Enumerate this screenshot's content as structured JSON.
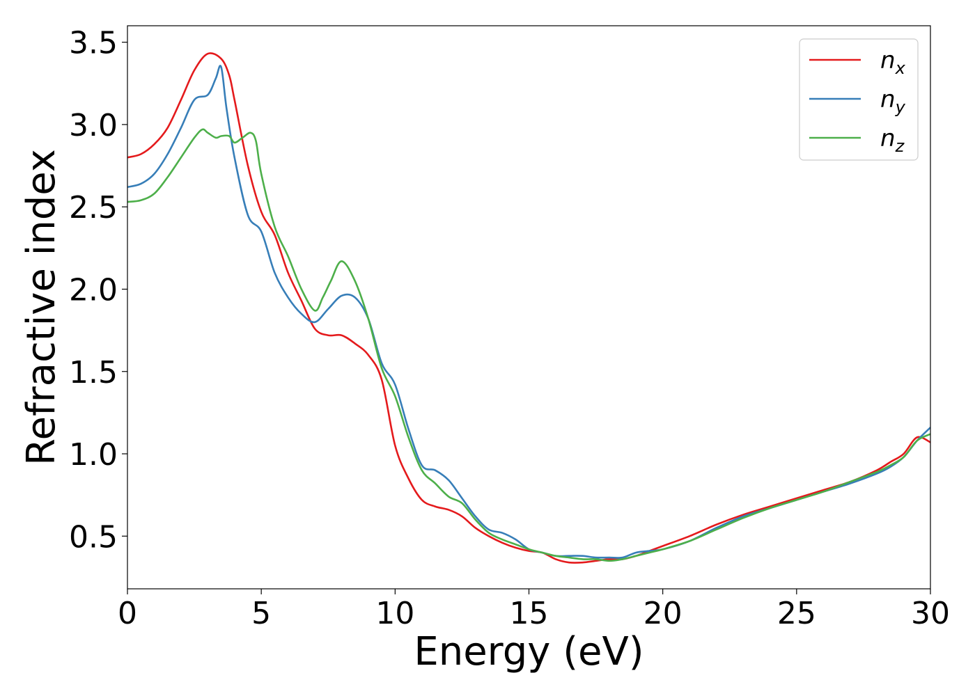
{
  "chart_data": {
    "type": "line",
    "xlabel": "Energy (eV)",
    "ylabel": "Refractive index",
    "xlim": [
      0,
      30
    ],
    "ylim": [
      0.18,
      3.6
    ],
    "xticks": [
      0,
      5,
      10,
      15,
      20,
      25,
      30
    ],
    "xtick_labels": [
      "0",
      "5",
      "10",
      "15",
      "20",
      "25",
      "30"
    ],
    "yticks": [
      0.5,
      1.0,
      1.5,
      2.0,
      2.5,
      3.0,
      3.5
    ],
    "ytick_labels": [
      "0.5",
      "1.0",
      "1.5",
      "2.0",
      "2.5",
      "3.0",
      "3.5"
    ],
    "grid": false,
    "legend_position": "top-right",
    "series": [
      {
        "name": "n",
        "subscript": "x",
        "color": "#e41a1c",
        "x": [
          0,
          0.5,
          1.0,
          1.5,
          2.0,
          2.5,
          3.0,
          3.5,
          3.8,
          4.0,
          4.5,
          5.0,
          5.5,
          6.0,
          6.5,
          7.0,
          7.5,
          8.0,
          8.5,
          9.0,
          9.5,
          10.0,
          10.5,
          11.0,
          11.5,
          12.0,
          12.5,
          13.0,
          13.5,
          14.0,
          14.5,
          15.0,
          15.5,
          16.0,
          16.5,
          17.0,
          17.5,
          18.0,
          18.5,
          19.0,
          19.5,
          20.0,
          21.0,
          22.0,
          23.0,
          24.0,
          25.0,
          26.0,
          27.0,
          28.0,
          28.5,
          29.0,
          29.5,
          30.0
        ],
        "y": [
          2.8,
          2.82,
          2.88,
          2.98,
          3.15,
          3.33,
          3.43,
          3.4,
          3.3,
          3.15,
          2.75,
          2.47,
          2.33,
          2.1,
          1.93,
          1.76,
          1.72,
          1.72,
          1.67,
          1.6,
          1.45,
          1.05,
          0.85,
          0.72,
          0.68,
          0.66,
          0.62,
          0.55,
          0.5,
          0.46,
          0.43,
          0.41,
          0.4,
          0.36,
          0.34,
          0.34,
          0.35,
          0.36,
          0.36,
          0.38,
          0.41,
          0.44,
          0.5,
          0.57,
          0.63,
          0.68,
          0.73,
          0.78,
          0.83,
          0.9,
          0.95,
          1.0,
          1.1,
          1.07
        ]
      },
      {
        "name": "n",
        "subscript": "y",
        "color": "#377eb8",
        "x": [
          0,
          0.5,
          1.0,
          1.5,
          2.0,
          2.5,
          3.0,
          3.3,
          3.5,
          3.7,
          4.0,
          4.5,
          5.0,
          5.5,
          6.0,
          6.5,
          7.0,
          7.5,
          8.0,
          8.5,
          9.0,
          9.5,
          10.0,
          10.5,
          11.0,
          11.5,
          12.0,
          12.5,
          13.0,
          13.5,
          14.0,
          14.5,
          15.0,
          15.5,
          16.0,
          16.5,
          17.0,
          17.5,
          18.0,
          18.5,
          19.0,
          19.5,
          20.0,
          21.0,
          22.0,
          23.0,
          24.0,
          25.0,
          26.0,
          27.0,
          28.0,
          28.5,
          29.0,
          29.5,
          30.0
        ],
        "y": [
          2.62,
          2.64,
          2.7,
          2.82,
          2.98,
          3.15,
          3.18,
          3.28,
          3.35,
          3.1,
          2.8,
          2.45,
          2.35,
          2.1,
          1.95,
          1.85,
          1.8,
          1.88,
          1.96,
          1.95,
          1.82,
          1.55,
          1.42,
          1.15,
          0.93,
          0.9,
          0.84,
          0.73,
          0.62,
          0.54,
          0.52,
          0.48,
          0.42,
          0.4,
          0.38,
          0.38,
          0.38,
          0.37,
          0.37,
          0.37,
          0.4,
          0.41,
          0.42,
          0.47,
          0.55,
          0.62,
          0.67,
          0.72,
          0.77,
          0.82,
          0.88,
          0.92,
          0.98,
          1.08,
          1.16
        ]
      },
      {
        "name": "n",
        "subscript": "z",
        "color": "#4daf4a",
        "x": [
          0,
          0.5,
          1.0,
          1.5,
          2.0,
          2.5,
          2.8,
          3.0,
          3.3,
          3.5,
          3.8,
          4.0,
          4.3,
          4.6,
          4.8,
          5.0,
          5.5,
          6.0,
          6.5,
          7.0,
          7.3,
          7.6,
          8.0,
          8.5,
          9.0,
          9.5,
          10.0,
          10.5,
          11.0,
          11.5,
          12.0,
          12.5,
          13.0,
          13.5,
          14.0,
          14.5,
          15.0,
          15.5,
          16.0,
          16.5,
          17.0,
          17.5,
          18.0,
          18.5,
          19.0,
          19.5,
          20.0,
          21.0,
          22.0,
          23.0,
          24.0,
          25.0,
          26.0,
          27.0,
          28.0,
          28.5,
          29.0,
          29.5,
          30.0
        ],
        "y": [
          2.53,
          2.54,
          2.58,
          2.68,
          2.8,
          2.92,
          2.97,
          2.95,
          2.92,
          2.93,
          2.93,
          2.89,
          2.92,
          2.95,
          2.9,
          2.7,
          2.38,
          2.2,
          2.0,
          1.87,
          1.95,
          2.05,
          2.17,
          2.05,
          1.82,
          1.52,
          1.35,
          1.1,
          0.9,
          0.82,
          0.74,
          0.7,
          0.6,
          0.52,
          0.48,
          0.45,
          0.42,
          0.4,
          0.38,
          0.37,
          0.36,
          0.36,
          0.35,
          0.36,
          0.38,
          0.4,
          0.42,
          0.47,
          0.54,
          0.61,
          0.67,
          0.72,
          0.77,
          0.83,
          0.89,
          0.93,
          0.98,
          1.08,
          1.12
        ]
      }
    ]
  }
}
